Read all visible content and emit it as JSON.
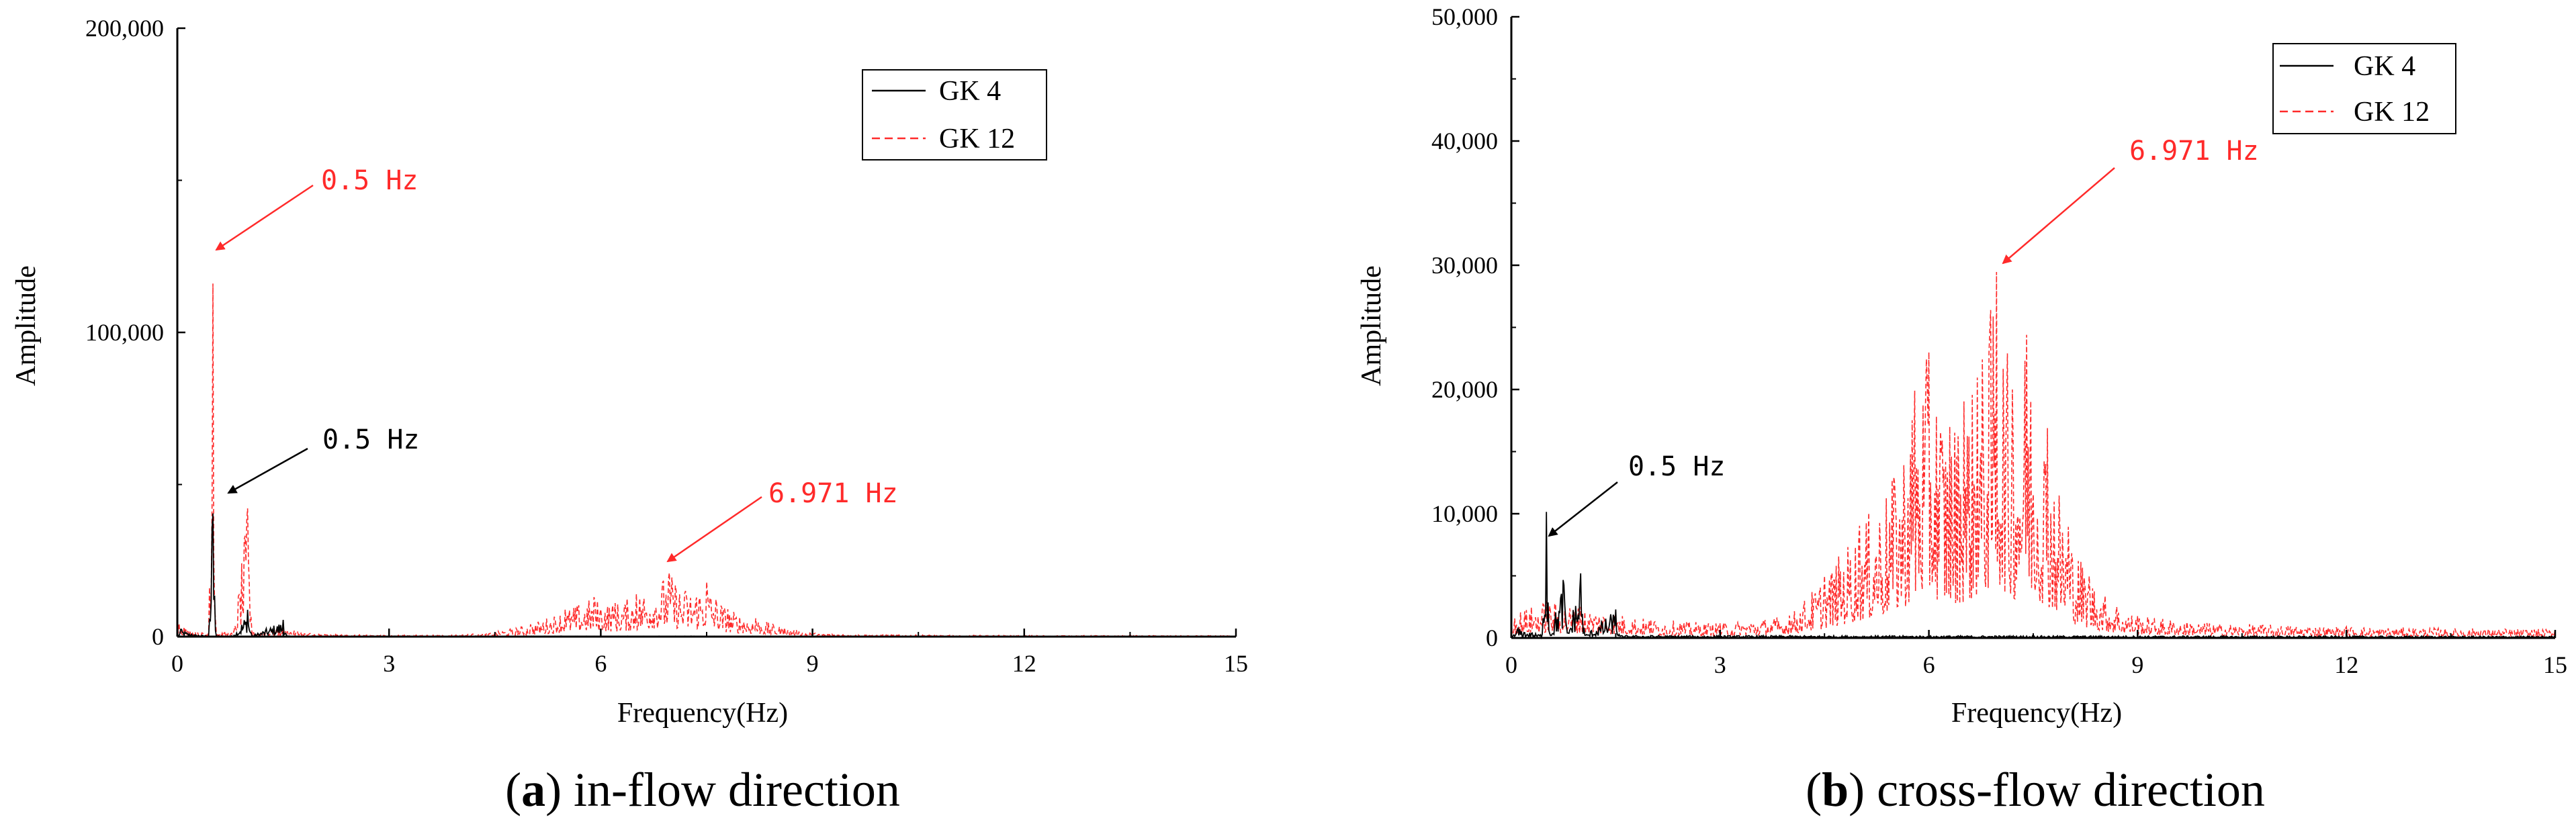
{
  "colors": {
    "gk4": "#000000",
    "gk12": "#ff2a2a",
    "axis": "#000000"
  },
  "chart_data": [
    {
      "type": "line",
      "caption_letter": "a",
      "caption_paren_open": "(",
      "caption_paren_close": ")",
      "caption": " in-flow direction",
      "xlabel": "Frequency(Hz)",
      "ylabel": "Amplitude",
      "xlim": [
        0,
        15
      ],
      "ylim": [
        0,
        200000
      ],
      "xticks": [
        0,
        3,
        6,
        9,
        12,
        15
      ],
      "yticks": [
        0,
        100000,
        200000
      ],
      "ytick_labels": [
        "0",
        "100,000",
        "200,000"
      ],
      "legend_position": "top-right",
      "series": [
        {
          "name": "GK 4",
          "style": "solid",
          "points": [
            [
              0,
              0
            ],
            [
              0.05,
              2500
            ],
            [
              0.2,
              800
            ],
            [
              0.45,
              300
            ],
            [
              0.5,
              44000
            ],
            [
              0.55,
              300
            ],
            [
              0.8,
              300
            ],
            [
              1.0,
              9000
            ],
            [
              1.05,
              200
            ],
            [
              1.5,
              5500
            ],
            [
              1.55,
              200
            ],
            [
              2.0,
              200
            ],
            [
              15,
              100
            ]
          ]
        },
        {
          "name": "GK 12",
          "style": "dashed",
          "points": [
            [
              0,
              7000
            ],
            [
              0.1,
              3000
            ],
            [
              0.25,
              1500
            ],
            [
              0.45,
              1200
            ],
            [
              0.5,
              126000
            ],
            [
              0.55,
              1500
            ],
            [
              0.8,
              1200
            ],
            [
              1.0,
              43000
            ],
            [
              1.05,
              1500
            ],
            [
              1.5,
              2500
            ],
            [
              2.0,
              800
            ],
            [
              3.0,
              500
            ],
            [
              4.0,
              600
            ],
            [
              4.5,
              1500
            ],
            [
              5.0,
              4000
            ],
            [
              5.5,
              9000
            ],
            [
              5.9,
              13000
            ],
            [
              6.2,
              11000
            ],
            [
              6.5,
              14000
            ],
            [
              6.971,
              21000
            ],
            [
              7.2,
              15000
            ],
            [
              7.5,
              18000
            ],
            [
              7.8,
              9000
            ],
            [
              8.2,
              6000
            ],
            [
              8.6,
              3000
            ],
            [
              9.0,
              1200
            ],
            [
              10.0,
              600
            ],
            [
              12.0,
              400
            ],
            [
              15.0,
              300
            ]
          ]
        }
      ],
      "annotations": [
        {
          "text": "0.5 Hz",
          "color": "red",
          "x": 0.5,
          "y": 126000
        },
        {
          "text": "0.5 Hz",
          "color": "black",
          "x": 0.5,
          "y": 46000
        },
        {
          "text": "6.971 Hz",
          "color": "red",
          "x": 6.971,
          "y": 21000
        }
      ]
    },
    {
      "type": "line",
      "caption_letter": "b",
      "caption_paren_open": "(",
      "caption_paren_close": ")",
      "caption": " cross-flow direction",
      "xlabel": "Frequency(Hz)",
      "ylabel": "Amplitude",
      "xlim": [
        0,
        15
      ],
      "ylim": [
        0,
        50000
      ],
      "xticks": [
        0,
        3,
        6,
        9,
        12,
        15
      ],
      "yticks": [
        0,
        10000,
        20000,
        30000,
        40000,
        50000
      ],
      "ytick_labels": [
        "0",
        "10,000",
        "20,000",
        "30,000",
        "40,000",
        "50,000"
      ],
      "legend_position": "top-right",
      "series": [
        {
          "name": "GK 4",
          "style": "solid",
          "points": [
            [
              0,
              0
            ],
            [
              0.1,
              800
            ],
            [
              0.3,
              400
            ],
            [
              0.45,
              300
            ],
            [
              0.5,
              11000
            ],
            [
              0.55,
              300
            ],
            [
              0.75,
              4800
            ],
            [
              0.8,
              300
            ],
            [
              1.0,
              5300
            ],
            [
              1.05,
              200
            ],
            [
              1.5,
              2300
            ],
            [
              1.55,
              200
            ],
            [
              2.0,
              200
            ],
            [
              15,
              150
            ]
          ]
        },
        {
          "name": "GK 12",
          "style": "dashed",
          "points": [
            [
              0,
              2000
            ],
            [
              0.5,
              3000
            ],
            [
              1.0,
              2500
            ],
            [
              1.5,
              2000
            ],
            [
              2.0,
              1500
            ],
            [
              3.0,
              1200
            ],
            [
              4.0,
              1800
            ],
            [
              4.5,
              5000
            ],
            [
              5.0,
              9000
            ],
            [
              5.5,
              13000
            ],
            [
              5.8,
              20000
            ],
            [
              6.0,
              23000
            ],
            [
              6.3,
              17000
            ],
            [
              6.5,
              19000
            ],
            [
              6.7,
              21000
            ],
            [
              6.971,
              29500
            ],
            [
              7.2,
              20000
            ],
            [
              7.4,
              24500
            ],
            [
              7.7,
              17000
            ],
            [
              8.0,
              9000
            ],
            [
              8.3,
              5000
            ],
            [
              8.7,
              2500
            ],
            [
              9.0,
              1800
            ],
            [
              10.0,
              1200
            ],
            [
              12.0,
              900
            ],
            [
              15.0,
              700
            ]
          ]
        }
      ],
      "annotations": [
        {
          "text": "6.971 Hz",
          "color": "red",
          "x": 6.971,
          "y": 29500
        },
        {
          "text": "0.5 Hz",
          "color": "black",
          "x": 0.5,
          "y": 8500
        }
      ]
    }
  ]
}
